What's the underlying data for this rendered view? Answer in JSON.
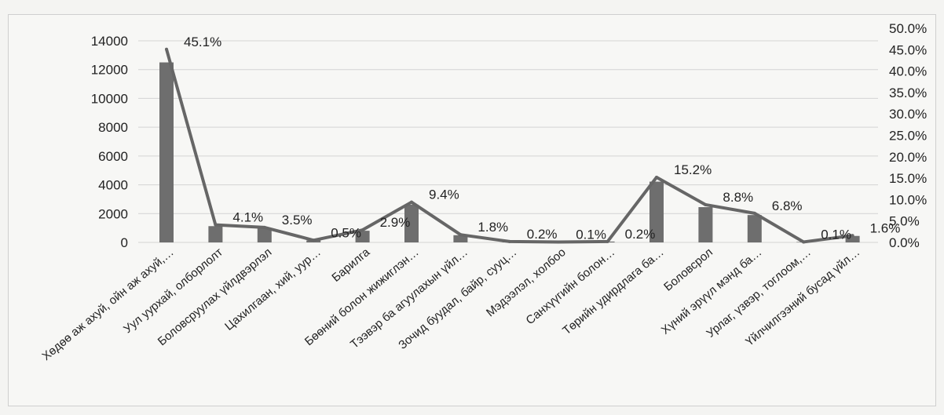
{
  "chart_data": {
    "type": "bar",
    "title": "",
    "xlabel": "",
    "ylabel": "",
    "categories": [
      "Хөдөө аж ахуй, ойн аж ахуй,…",
      "Уул уурхай, олборлолт",
      "Боловсруулах үйлдвэрлэл",
      "Цахилгаан, хий, уур…",
      "Барилга",
      "Бөөний болон жижиглэн…",
      "Тээвэр ба агуулахын үйл…",
      "Зочид буудал, байр, сууц…",
      "Мэдээлэл, холбоо",
      "Санхүүгийн болон…",
      "Төрийн удирдлага ба…",
      "Боловсрол",
      "Хүний эрүүл мэнд ба…",
      "Урлаг, үзвэр, тоглоом,…",
      "Үйлчилгээний бусад үйл…"
    ],
    "series": [
      {
        "axis": "left",
        "kind": "bar",
        "values": [
          12500,
          1130,
          970,
          140,
          810,
          2620,
          500,
          60,
          30,
          60,
          4220,
          2450,
          1900,
          30,
          450
        ]
      },
      {
        "axis": "right",
        "kind": "line",
        "values": [
          45.1,
          4.1,
          3.5,
          0.5,
          2.9,
          9.4,
          1.8,
          0.2,
          0.1,
          0.2,
          15.2,
          8.8,
          6.8,
          0.1,
          1.6
        ]
      }
    ],
    "data_labels": [
      "45.1%",
      "4.1%",
      "3.5%",
      "0.5%",
      "2.9%",
      "9.4%",
      "1.8%",
      "0.2%",
      "0.1%",
      "0.2%",
      "15.2%",
      "8.8%",
      "6.8%",
      "0.1%",
      "1.6%"
    ],
    "ylim_left": [
      0,
      14000
    ],
    "yticks_left": [
      "0",
      "2000",
      "4000",
      "6000",
      "8000",
      "10000",
      "12000",
      "14000"
    ],
    "ylim_right": [
      0,
      50
    ],
    "yticks_right": [
      "0.0%",
      "5.0%",
      "10.0%",
      "15.0%",
      "20.0%",
      "25.0%",
      "30.0%",
      "35.0%",
      "40.0%",
      "45.0%",
      "50.0%"
    ],
    "grid": true,
    "legend": "none",
    "colors": {
      "bar": "#6e6e6e",
      "line": "#666666",
      "grid": "#d4d4d4",
      "text": "#222222"
    }
  }
}
